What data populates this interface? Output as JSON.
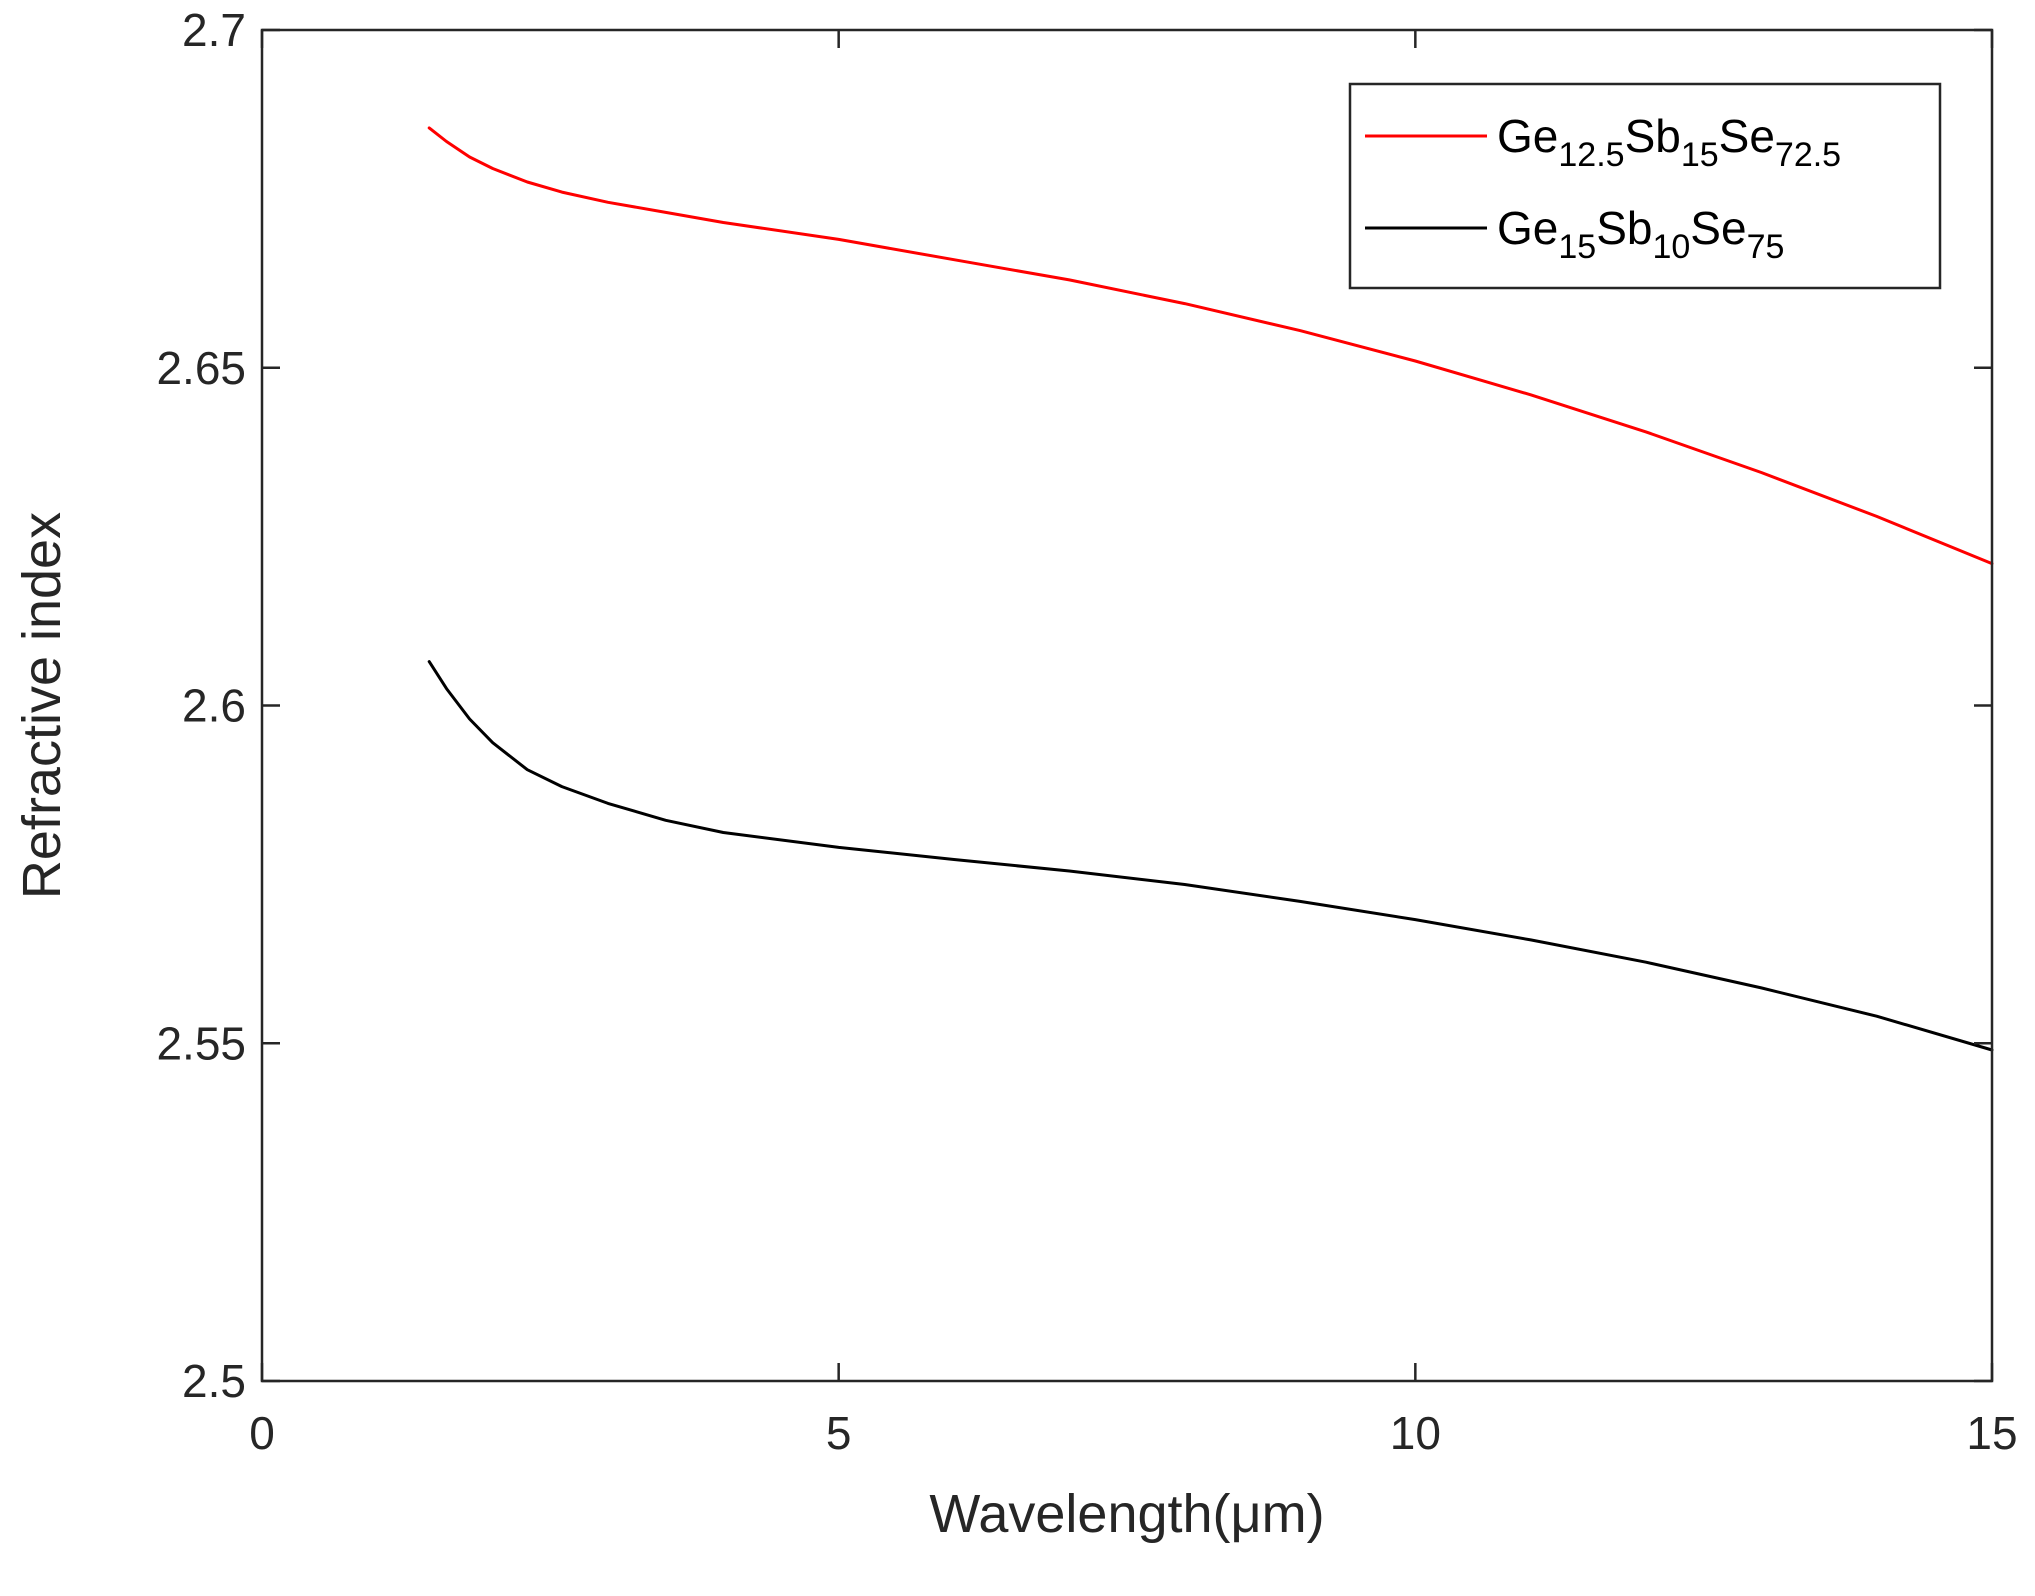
{
  "chart_data": {
    "type": "line",
    "title": "",
    "xlabel": "Wavelength(μm)",
    "ylabel": "Refractive index",
    "xlim": [
      0,
      15
    ],
    "ylim": [
      2.5,
      2.7
    ],
    "xticks": [
      0,
      5,
      10,
      15
    ],
    "xtick_labels": [
      "0",
      "5",
      "10",
      "15"
    ],
    "yticks": [
      2.5,
      2.55,
      2.6,
      2.65,
      2.7
    ],
    "ytick_labels": [
      "2.5",
      "2.55",
      "2.6",
      "2.65",
      "2.7"
    ],
    "grid": false,
    "legend_position": "top-right",
    "series": [
      {
        "name": "Ge12.5Sb15Se72.5",
        "legend_parts": [
          {
            "t": "Ge",
            "sub": false
          },
          {
            "t": "12.5",
            "sub": true
          },
          {
            "t": "Sb",
            "sub": false
          },
          {
            "t": "15",
            "sub": true
          },
          {
            "t": "Se",
            "sub": false
          },
          {
            "t": "72.5",
            "sub": true
          }
        ],
        "color": "#ff0000",
        "x": [
          1.45,
          1.6,
          1.8,
          2.0,
          2.3,
          2.6,
          3.0,
          3.5,
          4.0,
          5.0,
          6.0,
          7.0,
          8.0,
          9.0,
          10.0,
          11.0,
          12.0,
          13.0,
          14.0,
          15.0
        ],
        "y": [
          2.6855,
          2.6835,
          2.6812,
          2.6795,
          2.6775,
          2.676,
          2.6745,
          2.673,
          2.6715,
          2.669,
          2.666,
          2.663,
          2.6595,
          2.6555,
          2.651,
          2.646,
          2.6405,
          2.6345,
          2.628,
          2.621
        ]
      },
      {
        "name": "Ge15Sb10Se75",
        "legend_parts": [
          {
            "t": "Ge",
            "sub": false
          },
          {
            "t": "15",
            "sub": true
          },
          {
            "t": "Sb",
            "sub": false
          },
          {
            "t": "10",
            "sub": true
          },
          {
            "t": "Se",
            "sub": false
          },
          {
            "t": "75",
            "sub": true
          }
        ],
        "color": "#000000",
        "x": [
          1.45,
          1.6,
          1.8,
          2.0,
          2.3,
          2.6,
          3.0,
          3.5,
          4.0,
          5.0,
          6.0,
          7.0,
          8.0,
          9.0,
          10.0,
          11.0,
          12.0,
          13.0,
          14.0,
          15.0
        ],
        "y": [
          2.6065,
          2.6025,
          2.598,
          2.5945,
          2.5905,
          2.588,
          2.5855,
          2.583,
          2.5812,
          2.579,
          2.5772,
          2.5755,
          2.5735,
          2.571,
          2.5683,
          2.5653,
          2.562,
          2.5582,
          2.554,
          2.549
        ]
      }
    ]
  }
}
